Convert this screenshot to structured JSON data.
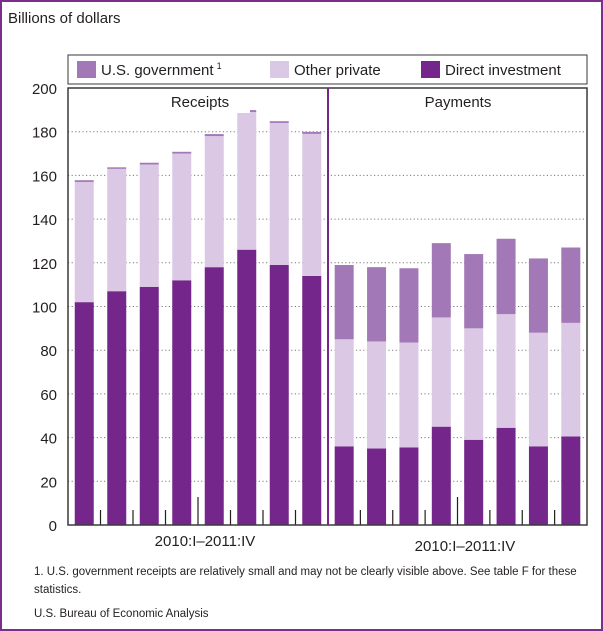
{
  "colors": {
    "frame": "#7b2e8b",
    "us_government": "#a378b7",
    "other_private": "#dbc8e4",
    "direct_investment": "#74268b",
    "grid": "#7a7a7a"
  },
  "ylabel": "Billions of dollars",
  "footnote": "1. U.S. government receipts are relatively small and may not be clearly visible above. See table F for these statistics.",
  "source": "U.S. Bureau of Economic Analysis",
  "chart_data": {
    "type": "bar",
    "stacked": true,
    "ylim": [
      0,
      200
    ],
    "yticks": [
      "0",
      "20",
      "40",
      "60",
      "80",
      "100",
      "120",
      "140",
      "160",
      "180",
      "200"
    ],
    "ytick_values": [
      0,
      20,
      40,
      60,
      80,
      100,
      120,
      140,
      160,
      180,
      200
    ],
    "grid": true,
    "legend_position": "top",
    "legend": [
      {
        "key": "us_government",
        "label": "U.S. government",
        "superscript": "1"
      },
      {
        "key": "other_private",
        "label": "Other private"
      },
      {
        "key": "direct_investment",
        "label": "Direct investment"
      }
    ],
    "panels": [
      {
        "title": "Receipts",
        "xlabel": "2010:I–2011:IV",
        "series": [
          {
            "name": "Direct investment",
            "key": "direct_investment",
            "values": [
              102,
              107,
              109,
              112,
              118,
              126,
              119,
              114
            ]
          },
          {
            "name": "Other private",
            "key": "other_private",
            "values": [
              55,
              56,
              56,
              58,
              60,
              63,
              65,
              65
            ]
          },
          {
            "name": "U.S. government",
            "key": "us_government",
            "values": [
              0.8,
              0.7,
              0.8,
              0.8,
              0.9,
              0.9,
              0.8,
              0.9
            ]
          }
        ]
      },
      {
        "title": "Payments",
        "xlabel": "2010:I–2011:IV",
        "series": [
          {
            "name": "Direct investment",
            "key": "direct_investment",
            "values": [
              36,
              35,
              35.5,
              45,
              39,
              44.5,
              36,
              40.5
            ]
          },
          {
            "name": "Other private",
            "key": "other_private",
            "values": [
              49,
              49,
              48,
              50,
              51,
              52,
              52,
              52
            ]
          },
          {
            "name": "U.S. government",
            "key": "us_government",
            "values": [
              34,
              34,
              34,
              34,
              34,
              34.5,
              34,
              34.5
            ]
          }
        ]
      }
    ]
  }
}
